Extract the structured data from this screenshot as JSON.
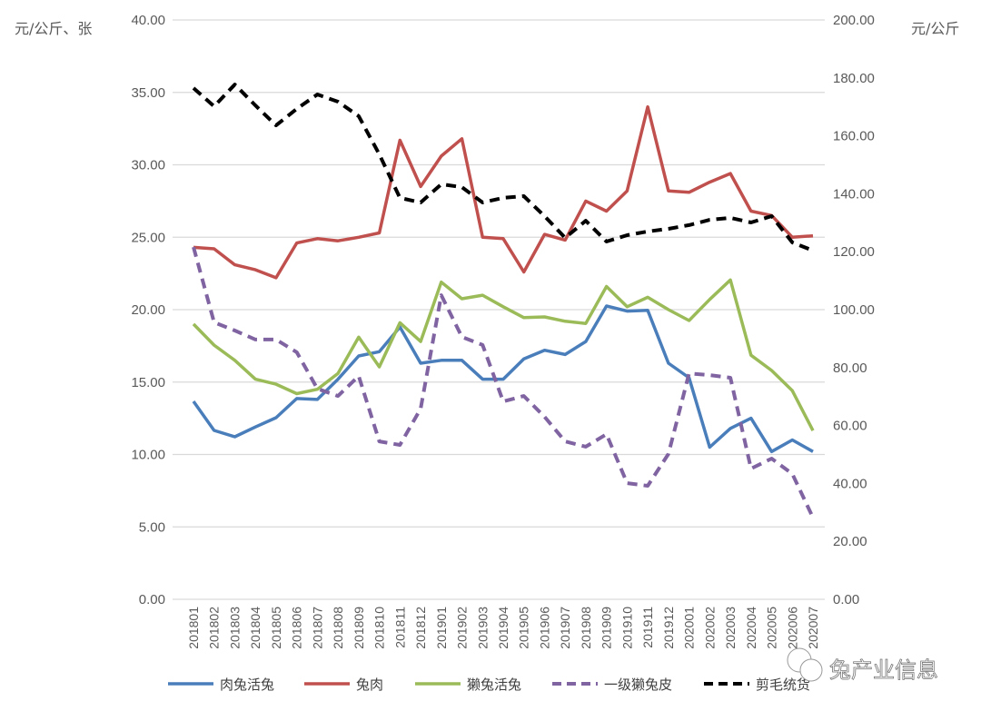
{
  "chart_data": {
    "type": "line",
    "left_axis": {
      "label": "元/公斤、张",
      "range": [
        0,
        40
      ],
      "ticks": [
        "0.00",
        "5.00",
        "10.00",
        "15.00",
        "20.00",
        "25.00",
        "30.00",
        "35.00",
        "40.00"
      ]
    },
    "right_axis": {
      "label": "元/公斤",
      "range": [
        0,
        200
      ],
      "ticks": [
        "0.00",
        "20.00",
        "40.00",
        "60.00",
        "80.00",
        "100.00",
        "120.00",
        "140.00",
        "160.00",
        "180.00",
        "200.00"
      ]
    },
    "grid": true,
    "legend_placement": "bottom",
    "categories": [
      "201801",
      "201802",
      "201803",
      "201804",
      "201805",
      "201806",
      "201807",
      "201808",
      "201809",
      "201810",
      "201811",
      "201812",
      "201901",
      "201902",
      "201903",
      "201904",
      "201905",
      "201906",
      "201907",
      "201908",
      "201909",
      "201910",
      "201911",
      "201912",
      "202001",
      "202002",
      "202003",
      "202004",
      "202005",
      "202006",
      "202007"
    ],
    "series": [
      {
        "name": "肉兔活兔",
        "axis": "left",
        "color": "#4a7ebb",
        "dash": false,
        "values": [
          13.67,
          11.66,
          11.22,
          11.9,
          12.54,
          13.86,
          13.8,
          15.2,
          16.8,
          17.1,
          18.8,
          16.3,
          16.5,
          16.5,
          15.2,
          15.2,
          16.6,
          17.2,
          16.9,
          17.8,
          20.25,
          19.9,
          19.95,
          16.3,
          15.3,
          10.5,
          11.8,
          12.5,
          10.2,
          11.0,
          10.2
        ]
      },
      {
        "name": "兔肉",
        "axis": "left",
        "color": "#c0504d",
        "dash": false,
        "values": [
          24.3,
          24.2,
          23.1,
          22.75,
          22.2,
          24.6,
          24.9,
          24.75,
          25.0,
          25.3,
          31.7,
          28.5,
          30.6,
          31.8,
          25.0,
          24.9,
          22.6,
          25.2,
          24.8,
          27.5,
          26.8,
          28.2,
          34.0,
          28.2,
          28.1,
          28.8,
          29.4,
          26.8,
          26.5,
          25.0,
          25.1
        ]
      },
      {
        "name": "獭兔活兔",
        "axis": "left",
        "color": "#9bbb59",
        "dash": false,
        "values": [
          19.0,
          17.55,
          16.5,
          15.2,
          14.85,
          14.2,
          14.5,
          15.6,
          18.1,
          16.05,
          19.1,
          17.8,
          21.9,
          20.75,
          21.0,
          20.2,
          19.45,
          19.5,
          19.2,
          19.05,
          21.6,
          20.2,
          20.85,
          20.0,
          19.25,
          20.7,
          22.05,
          16.85,
          15.8,
          14.4,
          11.65
        ]
      },
      {
        "name": "一级獭兔皮",
        "axis": "right",
        "color": "#8064a2",
        "dash": true,
        "values": [
          121.6,
          95.6,
          92.8,
          89.7,
          89.7,
          85.3,
          72.7,
          70.2,
          77.1,
          54.5,
          53.3,
          65.8,
          105.0,
          90.6,
          87.8,
          68.3,
          70.2,
          63.0,
          54.5,
          52.7,
          57.0,
          40.1,
          39.2,
          50.2,
          78.0,
          77.4,
          76.5,
          45.1,
          48.6,
          43.3,
          28.2
        ]
      },
      {
        "name": "剪毛统货",
        "axis": "right",
        "color": "#000000",
        "dash": true,
        "values": [
          176.5,
          170.2,
          177.7,
          170.5,
          163.6,
          169.3,
          174.3,
          171.8,
          166.8,
          153.6,
          138.6,
          137.0,
          143.3,
          142.3,
          137.0,
          138.6,
          139.2,
          132.3,
          124.8,
          130.7,
          123.5,
          125.7,
          127.0,
          127.9,
          129.2,
          131.0,
          131.7,
          130.1,
          132.3,
          123.2,
          120.4
        ]
      }
    ]
  },
  "watermark": {
    "text": "兔产业信息"
  }
}
